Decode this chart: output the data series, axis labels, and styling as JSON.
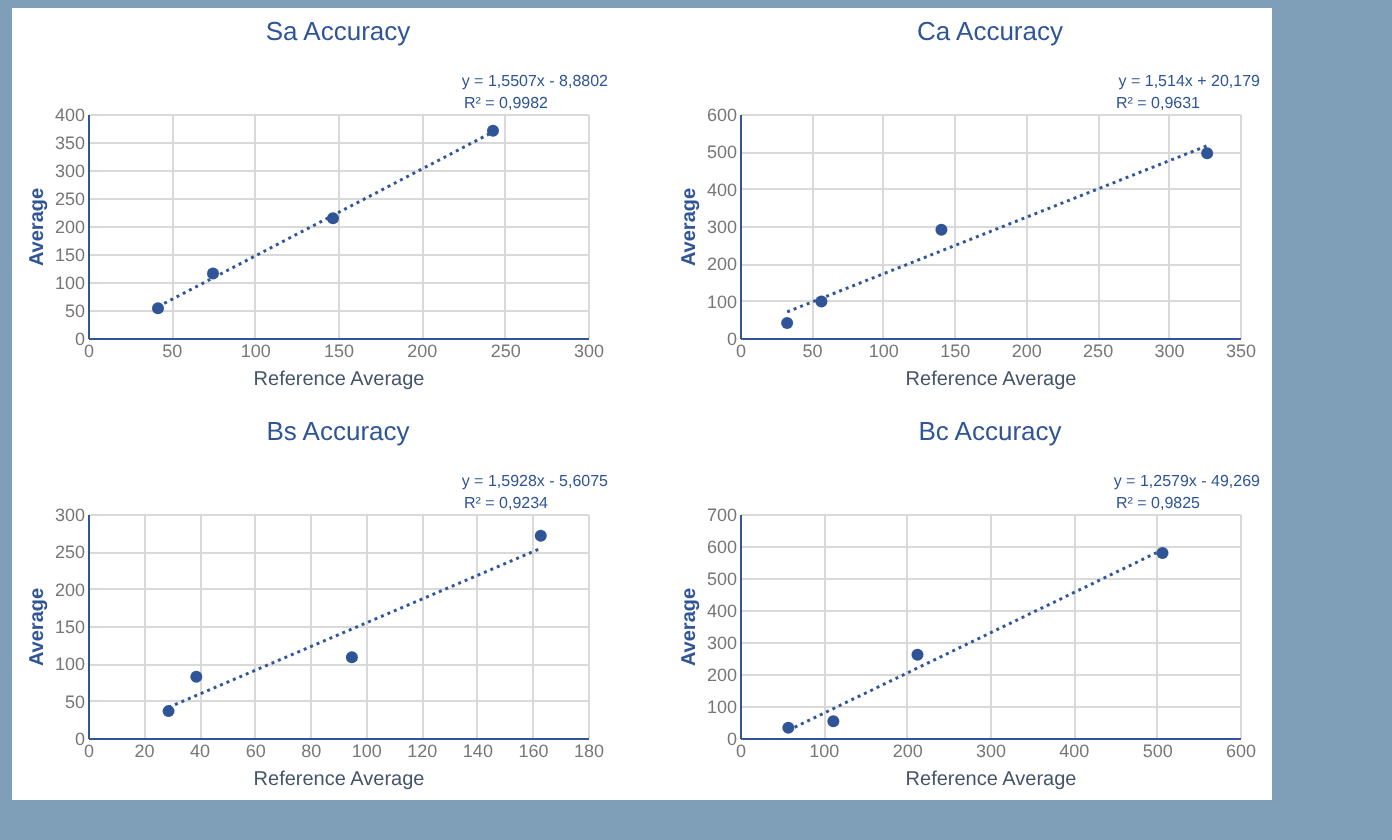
{
  "chart_data": [
    {
      "type": "scatter",
      "title": "Sa Accuracy",
      "xlabel": "Reference Average",
      "ylabel": "Average",
      "annotations": [
        "y = 1,5507x - 8,8802",
        "R² = 0,9982"
      ],
      "xlim": [
        0,
        300
      ],
      "xticks": [
        0,
        50,
        100,
        150,
        200,
        250,
        300
      ],
      "ylim": [
        0,
        400
      ],
      "yticks": [
        0,
        50,
        100,
        150,
        200,
        250,
        300,
        350,
        400
      ],
      "grid": true,
      "series": [
        {
          "color": "#2f5597",
          "marker": "circle",
          "x": [
            42,
            75,
            147,
            243
          ],
          "values": [
            53,
            115,
            214,
            370
          ]
        },
        {
          "type": "line",
          "color": "#2f5597",
          "marker": "none",
          "line_style": "dotted",
          "x": [
            42,
            243
          ],
          "values": [
            56,
            368
          ]
        }
      ]
    },
    {
      "type": "scatter",
      "title": "Ca Accuracy",
      "xlabel": "Reference Average",
      "ylabel": "Average",
      "annotations": [
        "y = 1,514x + 20,179",
        "R² = 0,9631"
      ],
      "xlim": [
        0,
        350
      ],
      "xticks": [
        0,
        50,
        100,
        150,
        200,
        250,
        300,
        350
      ],
      "ylim": [
        0,
        600
      ],
      "yticks": [
        0,
        100,
        200,
        300,
        400,
        500,
        600
      ],
      "grid": true,
      "series": [
        {
          "color": "#2f5597",
          "marker": "circle",
          "x": [
            33,
            57,
            141,
            327
          ],
          "values": [
            40,
            98,
            290,
            495
          ]
        },
        {
          "type": "line",
          "color": "#2f5597",
          "marker": "none",
          "line_style": "dotted",
          "x": [
            33,
            327
          ],
          "values": [
            70,
            515
          ]
        }
      ]
    },
    {
      "type": "scatter",
      "title": "Bs Accuracy",
      "xlabel": "Reference Average",
      "ylabel": "Average",
      "annotations": [
        "y = 1,5928x - 5,6075",
        "R² = 0,9234"
      ],
      "xlim": [
        0,
        180
      ],
      "xticks": [
        0,
        20,
        40,
        60,
        80,
        100,
        120,
        140,
        160,
        180
      ],
      "ylim": [
        0,
        300
      ],
      "yticks": [
        0,
        50,
        100,
        150,
        200,
        250,
        300
      ],
      "grid": true,
      "series": [
        {
          "color": "#2f5597",
          "marker": "circle",
          "x": [
            29,
            39,
            95,
            163
          ],
          "values": [
            36,
            82,
            108,
            271
          ]
        },
        {
          "type": "line",
          "color": "#2f5597",
          "marker": "none",
          "line_style": "dotted",
          "x": [
            29,
            163
          ],
          "values": [
            41,
            254
          ]
        }
      ]
    },
    {
      "type": "scatter",
      "title": "Bc Accuracy",
      "xlabel": "Reference Average",
      "ylabel": "Average",
      "annotations": [
        "y = 1,2579x - 49,269",
        "R² = 0,9825"
      ],
      "xlim": [
        0,
        600
      ],
      "xticks": [
        0,
        100,
        200,
        300,
        400,
        500,
        600
      ],
      "ylim": [
        0,
        700
      ],
      "yticks": [
        0,
        100,
        200,
        300,
        400,
        500,
        600,
        700
      ],
      "grid": true,
      "series": [
        {
          "color": "#2f5597",
          "marker": "circle",
          "x": [
            58,
            112,
            213,
            507
          ],
          "values": [
            32,
            52,
            260,
            578
          ]
        },
        {
          "type": "line",
          "color": "#2f5597",
          "marker": "none",
          "line_style": "dotted",
          "x": [
            58,
            507
          ],
          "values": [
            24,
            588
          ]
        }
      ]
    }
  ]
}
